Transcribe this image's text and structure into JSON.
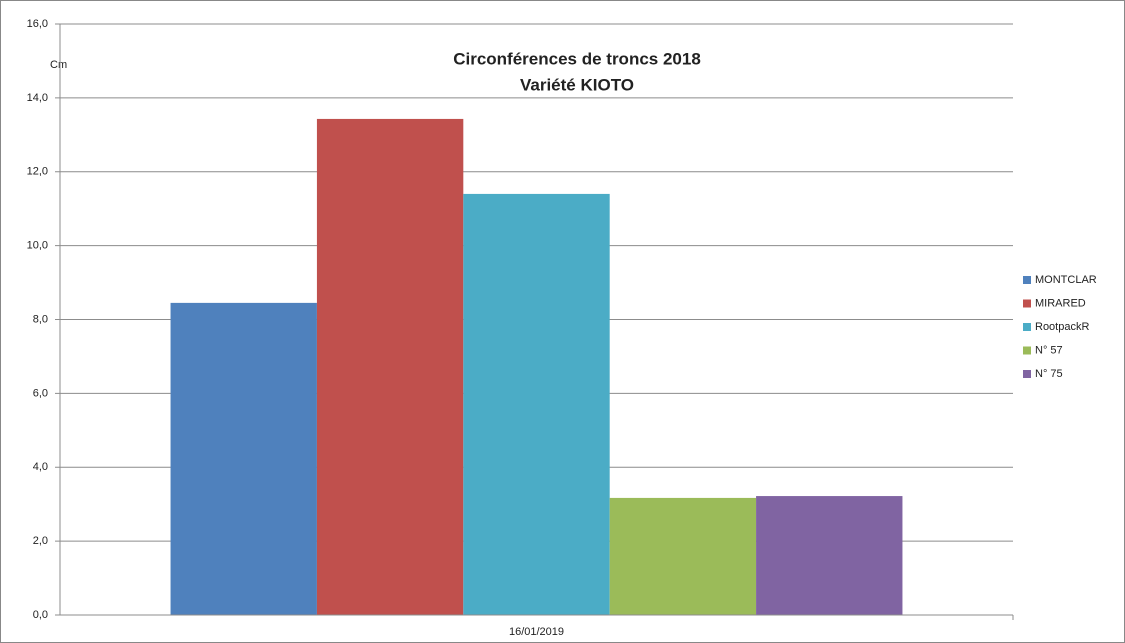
{
  "chart_data": {
    "type": "bar",
    "title": [
      "Circonférences de troncs 2018",
      "Variété KIOTO"
    ],
    "y_label": "Cm",
    "categories": [
      "16/01/2019"
    ],
    "series": [
      {
        "name": "MONTCLAR",
        "color": "#4f81bd",
        "values": [
          8.45
        ]
      },
      {
        "name": "MIRARED",
        "color": "#c0504d",
        "values": [
          13.43
        ]
      },
      {
        "name": "RootpackR",
        "color": "#4bacc6",
        "values": [
          11.4
        ]
      },
      {
        "name": "N° 57",
        "color": "#9bbb59",
        "values": [
          3.17
        ]
      },
      {
        "name": "N° 75",
        "color": "#8064a2",
        "values": [
          3.22
        ]
      }
    ],
    "ylim": [
      0,
      16
    ],
    "yticks": [
      {
        "value": 0,
        "label": "0,0"
      },
      {
        "value": 2,
        "label": "2,0"
      },
      {
        "value": 4,
        "label": "4,0"
      },
      {
        "value": 6,
        "label": "6,0"
      },
      {
        "value": 8,
        "label": "8,0"
      },
      {
        "value": 10,
        "label": "10,0"
      },
      {
        "value": 12,
        "label": "12,0"
      },
      {
        "value": 14,
        "label": "14,0"
      },
      {
        "value": 16,
        "label": "16,0"
      }
    ],
    "grid": true,
    "legend": "right"
  }
}
